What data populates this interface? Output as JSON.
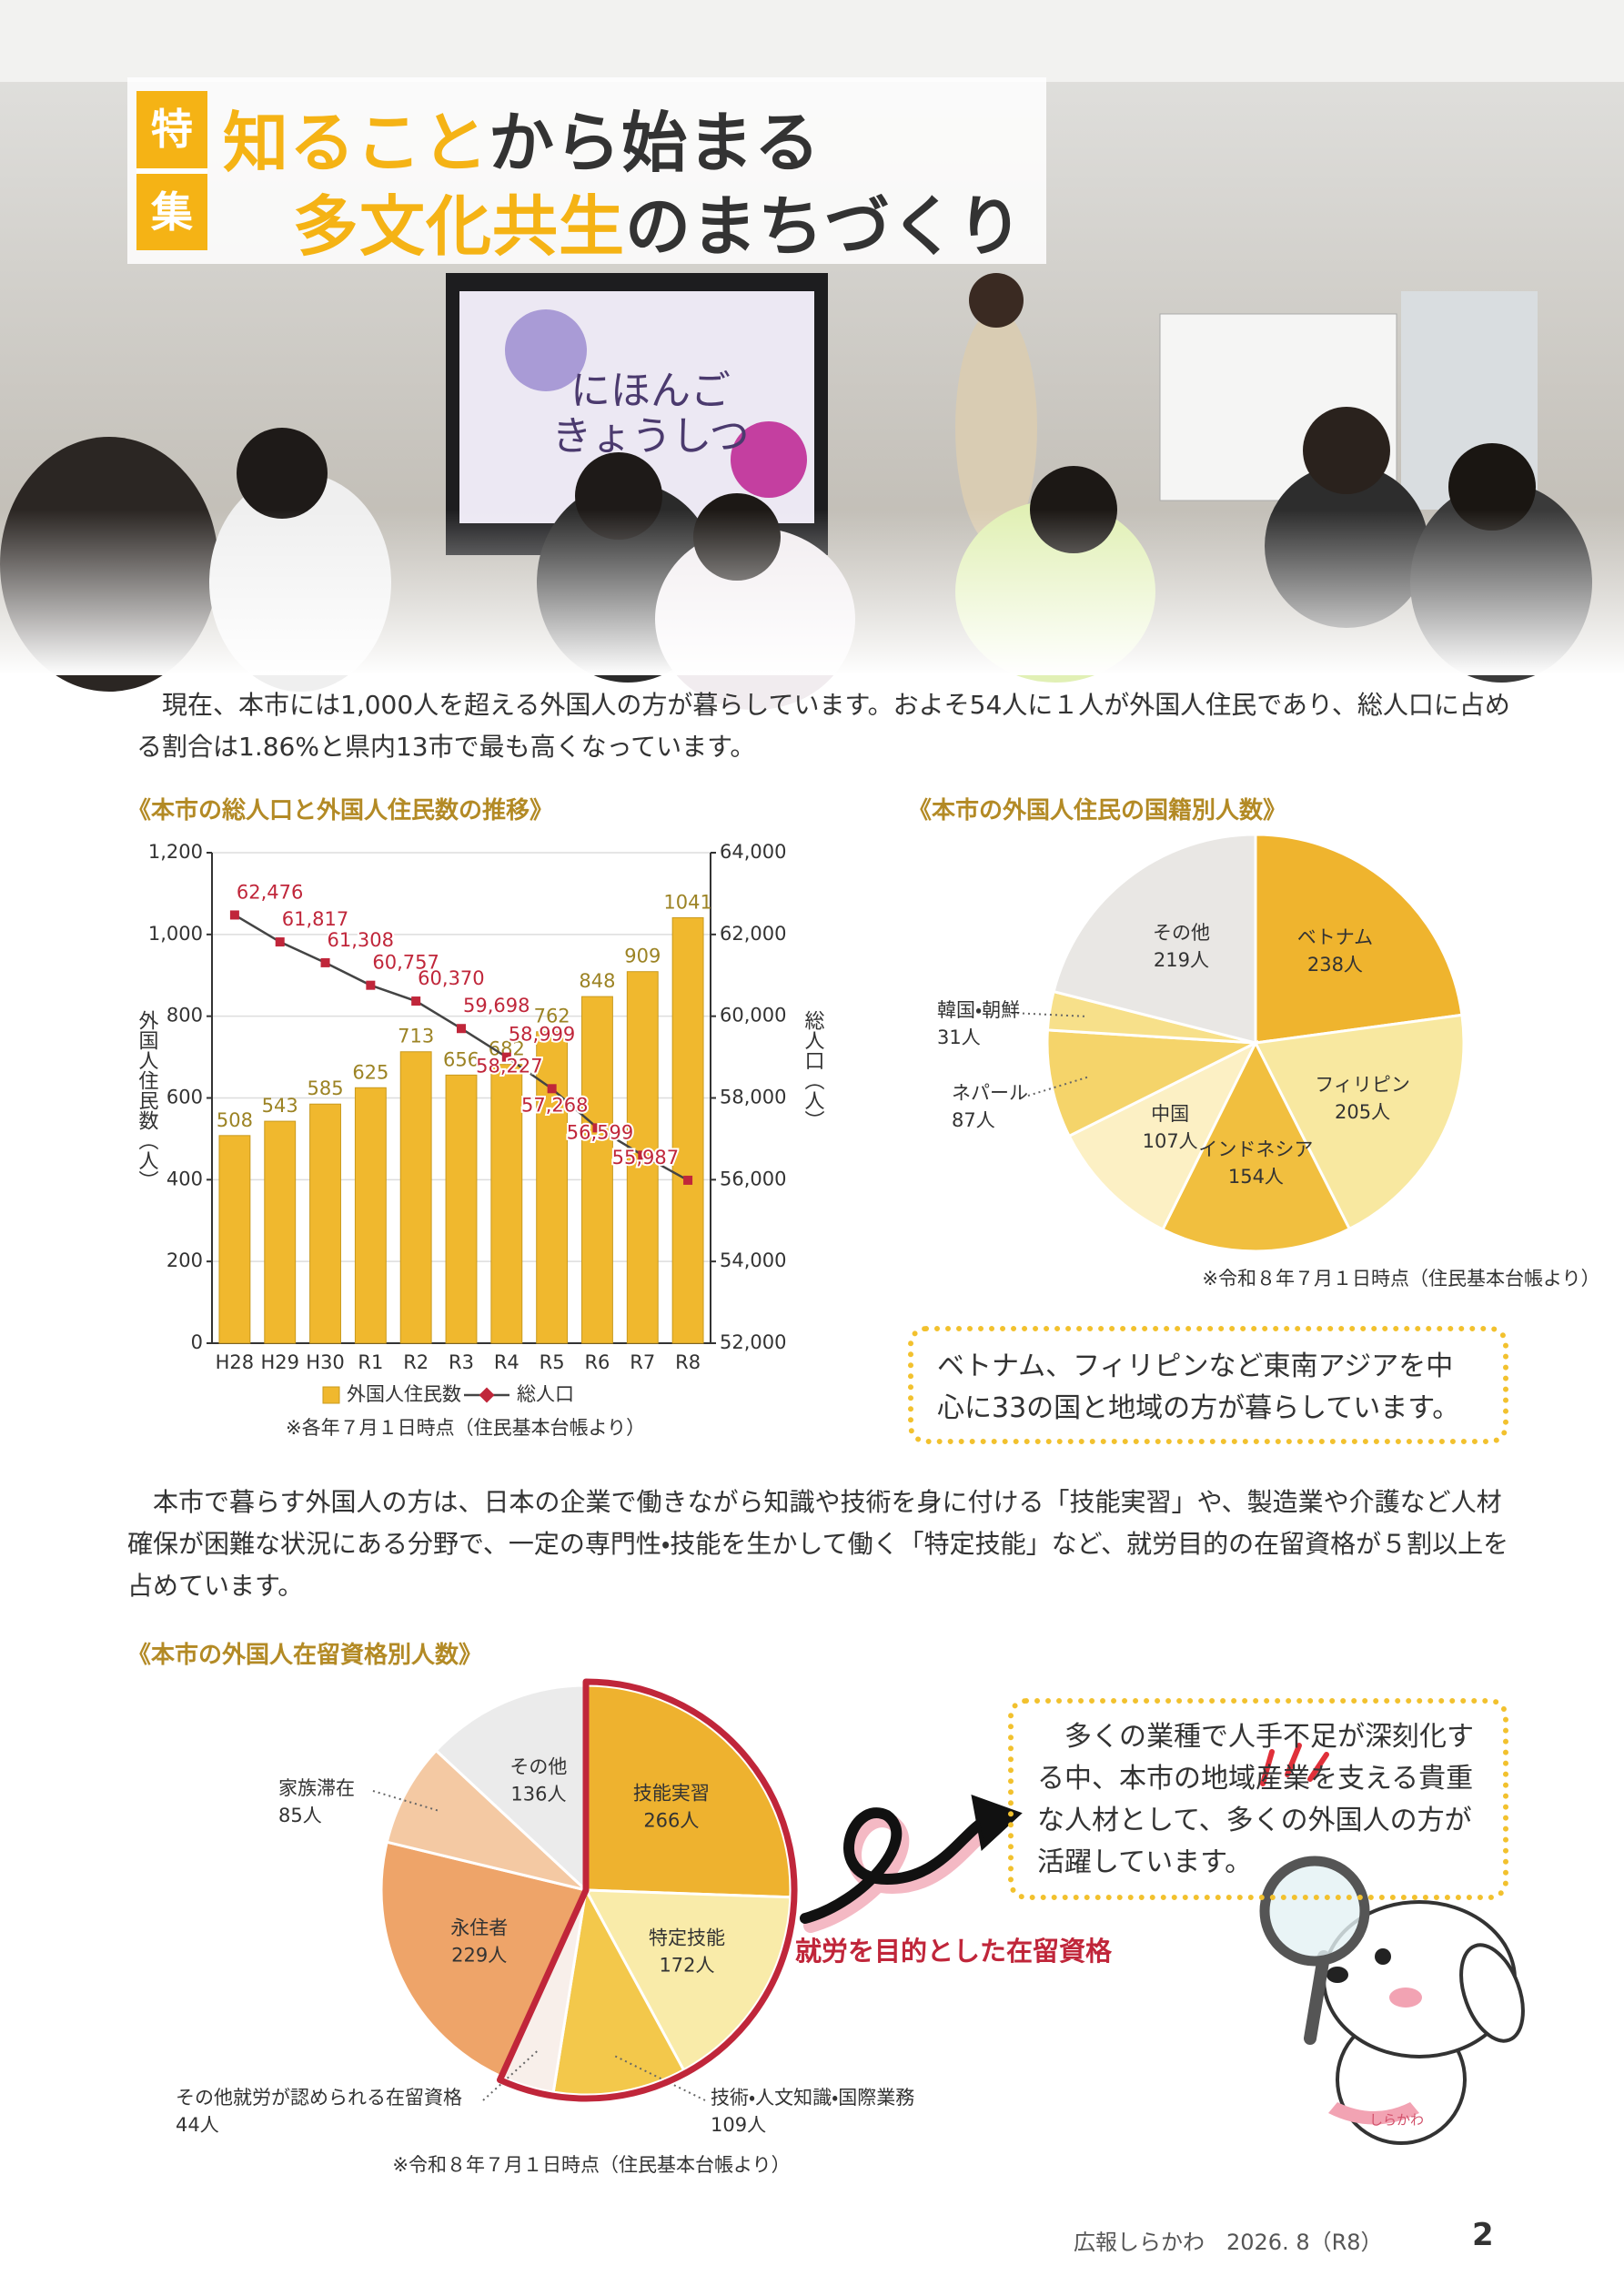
{
  "header": {
    "badge": [
      "特",
      "集"
    ],
    "title_lines": [
      {
        "accent": "知ること",
        "rest": "から始まる"
      },
      {
        "accent": "多文化共生",
        "rest": "のまちづくり"
      }
    ]
  },
  "photo": {
    "screen_text": [
      "にほんご",
      "きょうしつ"
    ]
  },
  "intro": "現在、本市には1,000人を超える外国人の方が暮らしています。およそ54人に１人が外国人住民であり、総人口に占める割合は1.86%と県内13市で最も高くなっています。",
  "callout_1": "ベトナム、フィリピンなど東南アジアを中心に33の国と地域の方が暮らしています。",
  "paragraph_2": "本市で暮らす外国人の方は、日本の企業で働きながら知識や技術を身に付ける「技能実習」や、製造業や介護など人材確保が困難な状況にある分野で、一定の専門性・技能を生かして働く「特定技能」など、就労目的の在留資格が５割以上を占めています。",
  "callout_2": "多くの業種で人手不足が深刻化する中、本市の地域産業を支える貴重な人材として、多くの外国人の方が活躍しています。",
  "mascot": {
    "tag": "しらかわ"
  },
  "footer": {
    "publication": "広報しらかわ　2026. 8（R8）",
    "page": "2"
  },
  "chart_data": [
    {
      "type": "bar",
      "title": "《本市の総人口と外国人住民数の推移》",
      "categories": [
        "H28",
        "H29",
        "H30",
        "R1",
        "R2",
        "R3",
        "R4",
        "R5",
        "R6",
        "R7",
        "R8"
      ],
      "series": [
        {
          "name": "外国人住民数",
          "type": "bar",
          "color": "#f0b82e",
          "values": [
            508,
            543,
            585,
            625,
            713,
            656,
            682,
            762,
            848,
            909,
            1041
          ]
        },
        {
          "name": "総人口",
          "type": "line",
          "axis": "y2",
          "color": "#c0263a",
          "values": [
            62476,
            61817,
            61308,
            60757,
            60370,
            59698,
            58999,
            58227,
            57268,
            56599,
            55987
          ],
          "value_labels": [
            "62,476",
            "61,817",
            "61,308",
            "60,757",
            "60,370",
            "59,698",
            "58,999",
            "58,227",
            "57,268",
            "56,599",
            "55,987"
          ]
        }
      ],
      "ylim": [
        0,
        1200
      ],
      "yticks": [
        0,
        200,
        400,
        600,
        800,
        {
          "value": 1000,
          "label": "1,000"
        },
        {
          "value": 1200,
          "label": "1,200"
        }
      ],
      "y2lim": [
        52000,
        64000
      ],
      "y2ticks": [
        {
          "value": 52000,
          "label": "52,000"
        },
        {
          "value": 54000,
          "label": "54,000"
        },
        {
          "value": 56000,
          "label": "56,000"
        },
        {
          "value": 58000,
          "label": "58,000"
        },
        {
          "value": 60000,
          "label": "60,000"
        },
        {
          "value": 62000,
          "label": "62,000"
        },
        {
          "value": 64000,
          "label": "64,000"
        }
      ],
      "ylabel": "外国人住民数（人）",
      "y2label": "総人口（人）",
      "grid": true,
      "legend": "bottom",
      "note": "※各年７月１日時点（住民基本台帳より）"
    },
    {
      "type": "pie",
      "title": "《本市の外国人住民の国籍別人数》",
      "categories": [
        "ベトナム",
        "フィリピン",
        "インドネシア",
        "中国",
        "ネパール",
        "韓国・朝鮮",
        "その他"
      ],
      "values": [
        238,
        205,
        154,
        107,
        87,
        31,
        219
      ],
      "value_labels": [
        "238人",
        "205人",
        "154人",
        "107人",
        "87人",
        "31人",
        "219人"
      ],
      "colors": [
        "#efb42e",
        "#f8e8a0",
        "#f1bf3f",
        "#fcf0c4",
        "#f5d46a",
        "#f7e08a",
        "#e9e7e4"
      ],
      "note": "※令和８年７月１日時点（住民基本台帳より）"
    },
    {
      "type": "pie",
      "title": "《本市の外国人在留資格別人数》",
      "categories": [
        "技能実習",
        "特定技能",
        "技術・人文知識・国際業務",
        "その他就労が認められる在留資格",
        "永住者",
        "家族滞在",
        "その他"
      ],
      "values": [
        266,
        172,
        109,
        44,
        229,
        85,
        136
      ],
      "value_labels": [
        "266人",
        "172人",
        "109人",
        "44人",
        "229人",
        "85人",
        "136人"
      ],
      "colors": [
        "#eeb22f",
        "#f9eba9",
        "#f3c84b",
        "#f8efea",
        "#eea469",
        "#f4c9a3",
        "#ebebeb"
      ],
      "highlighted": [
        true,
        true,
        true,
        true,
        false,
        false,
        false
      ],
      "highlight_color": "#c0263a",
      "annotation": "就労を目的とした在留資格",
      "note": "※令和８年７月１日時点（住民基本台帳より）"
    }
  ]
}
